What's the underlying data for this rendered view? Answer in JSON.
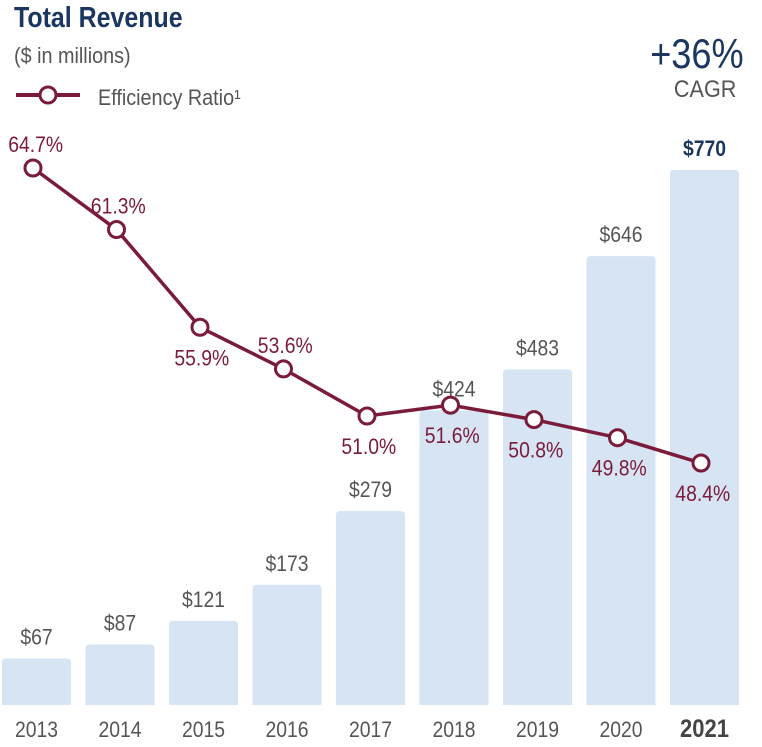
{
  "header": {
    "title": "Total Revenue",
    "subtitle": "($ in millions)",
    "legend_label": "Efficiency Ratio¹",
    "cagr_value": "+36%",
    "cagr_label": "CAGR"
  },
  "colors": {
    "bar": "#d6e4f3",
    "line": "#7b1b3a",
    "title": "#1b3660",
    "text": "#555555",
    "highlight": "#1b3660"
  },
  "chart_data": {
    "type": "bar",
    "categories": [
      "2013",
      "2014",
      "2015",
      "2016",
      "2017",
      "2018",
      "2019",
      "2020",
      "2021"
    ],
    "highlight_category": "2021",
    "series": [
      {
        "name": "Total Revenue",
        "type": "bar",
        "values": [
          67,
          87,
          121,
          173,
          279,
          424,
          483,
          646,
          770
        ],
        "labels": [
          "$67",
          "$87",
          "$121",
          "$173",
          "$279",
          "$424",
          "$483",
          "$646",
          "$770"
        ]
      },
      {
        "name": "Efficiency Ratio¹",
        "type": "line",
        "values": [
          64.7,
          61.3,
          55.9,
          53.6,
          51.0,
          51.6,
          50.8,
          49.8,
          48.4
        ],
        "labels": [
          "64.7%",
          "61.3%",
          "55.9%",
          "53.6%",
          "51.0%",
          "51.6%",
          "50.8%",
          "49.8%",
          "48.4%"
        ],
        "label_position": [
          "above",
          "above",
          "below",
          "above",
          "below",
          "below",
          "below",
          "below",
          "below"
        ]
      }
    ],
    "title": "Total Revenue",
    "subtitle": "($ in millions)",
    "legend": "top-left",
    "grid": false
  }
}
